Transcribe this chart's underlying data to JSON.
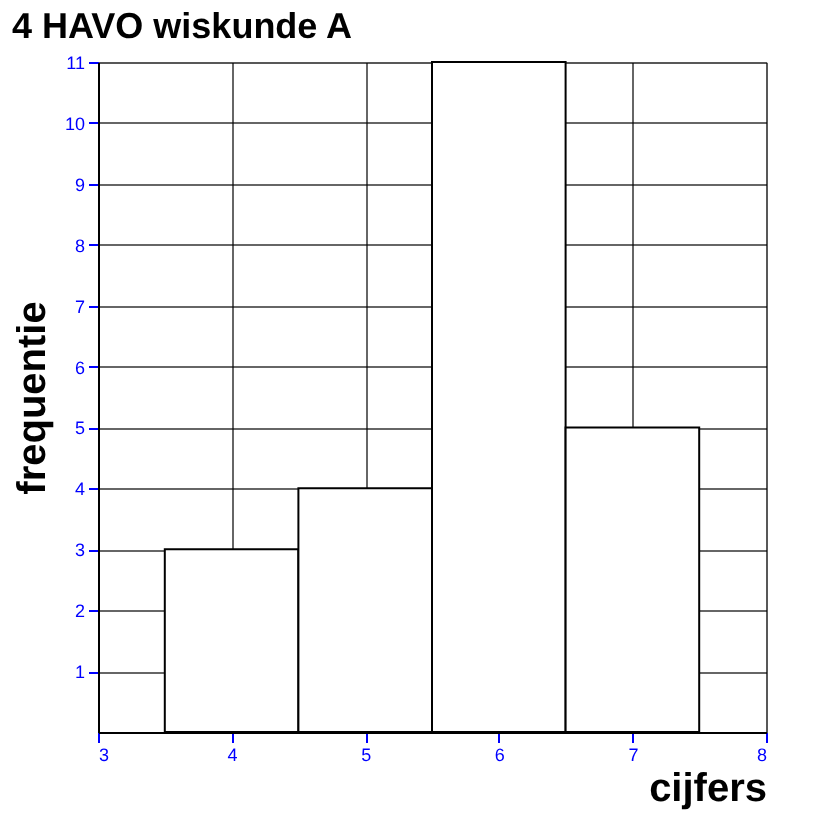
{
  "chart_data": {
    "type": "histogram",
    "title": "4 HAVO wiskunde A",
    "xlabel": "cijfers",
    "ylabel": "frequentie",
    "bins": [
      3.5,
      4.5,
      5.5,
      6.5,
      7.5
    ],
    "values": [
      3,
      4,
      11,
      5
    ],
    "color": "#ffffff",
    "xlim": [
      3,
      8
    ],
    "xticks": [
      3,
      4,
      5,
      6,
      7,
      8
    ],
    "ylim": [
      0,
      11
    ],
    "yticks": [
      1,
      2,
      3,
      4,
      5,
      6,
      7,
      8,
      9,
      10,
      11
    ],
    "grid": true
  }
}
